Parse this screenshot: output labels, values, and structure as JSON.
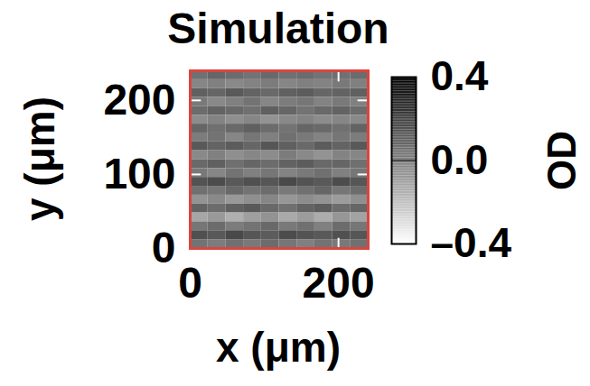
{
  "chart_data": {
    "type": "heatmap",
    "title": "Simulation",
    "x_label": "x (μm)",
    "y_label": "y (μm)",
    "xlim": [
      0,
      240
    ],
    "ylim": [
      0,
      240
    ],
    "xticks": [
      0,
      200
    ],
    "yticks": [
      0,
      100,
      200
    ],
    "od": [
      [
        0.05,
        0.08,
        0.06,
        0.04,
        0.07,
        0.05,
        0.06,
        0.04,
        0.05,
        0.06
      ],
      [
        -0.02,
        0.0,
        -0.03,
        -0.01,
        0.01,
        -0.02,
        0.0,
        -0.01,
        0.02,
        0.0
      ],
      [
        0.1,
        0.08,
        0.12,
        0.09,
        0.07,
        0.1,
        0.11,
        0.08,
        0.09,
        0.1
      ],
      [
        0.02,
        -0.03,
        0.0,
        0.04,
        -0.02,
        0.01,
        0.03,
        -0.01,
        0.02,
        0.0
      ],
      [
        0.06,
        0.09,
        0.07,
        0.05,
        0.1,
        0.08,
        0.04,
        0.07,
        0.09,
        0.06
      ],
      [
        -0.04,
        -0.01,
        -0.05,
        -0.02,
        -0.06,
        -0.03,
        -0.01,
        -0.04,
        -0.02,
        -0.03
      ],
      [
        0.08,
        0.05,
        0.07,
        0.1,
        0.06,
        0.04,
        0.08,
        0.07,
        0.05,
        0.09
      ],
      [
        0.01,
        0.04,
        -0.02,
        0.03,
        0.0,
        0.05,
        0.02,
        -0.01,
        0.03,
        0.01
      ],
      [
        0.12,
        0.09,
        0.11,
        0.08,
        0.13,
        0.1,
        0.07,
        0.11,
        0.09,
        0.12
      ],
      [
        -0.03,
        0.0,
        -0.05,
        -0.02,
        -0.04,
        0.01,
        -0.03,
        -0.06,
        -0.01,
        -0.02
      ],
      [
        0.07,
        0.1,
        0.05,
        0.08,
        0.06,
        0.09,
        0.11,
        0.07,
        0.08,
        0.05
      ],
      [
        0.02,
        -0.02,
        0.04,
        0.0,
        0.03,
        -0.01,
        0.02,
        0.05,
        0.0,
        0.03
      ],
      [
        0.14,
        0.16,
        0.12,
        0.15,
        0.13,
        0.17,
        0.14,
        0.12,
        0.16,
        0.13
      ],
      [
        0.05,
        0.03,
        0.07,
        0.04,
        0.06,
        0.02,
        0.05,
        0.08,
        0.03,
        0.06
      ],
      [
        -0.06,
        -0.03,
        -0.08,
        -0.05,
        -0.02,
        -0.07,
        -0.04,
        -0.06,
        -0.09,
        -0.05
      ],
      [
        0.09,
        0.06,
        0.1,
        0.12,
        0.07,
        0.05,
        0.09,
        0.11,
        0.06,
        0.08
      ],
      [
        -0.12,
        -0.08,
        -0.15,
        -0.1,
        -0.06,
        -0.13,
        -0.09,
        -0.14,
        -0.07,
        -0.11
      ],
      [
        0.03,
        0.06,
        0.01,
        0.04,
        0.07,
        0.02,
        0.05,
        0.0,
        0.06,
        0.03
      ],
      [
        0.15,
        0.12,
        0.17,
        0.13,
        0.11,
        0.16,
        0.14,
        0.12,
        0.15,
        0.13
      ],
      [
        0.04,
        0.01,
        0.05,
        0.02,
        0.06,
        0.03,
        0.0,
        0.04,
        0.02,
        0.05
      ]
    ],
    "colorbar": {
      "label": "OD",
      "lim": [
        -0.4,
        0.4
      ],
      "ticks": [
        {
          "value": -0.4,
          "label": "–0.4"
        },
        {
          "value": 0,
          "label": "0.0"
        },
        0.4
      ]
    },
    "color": "#d9453f"
  }
}
